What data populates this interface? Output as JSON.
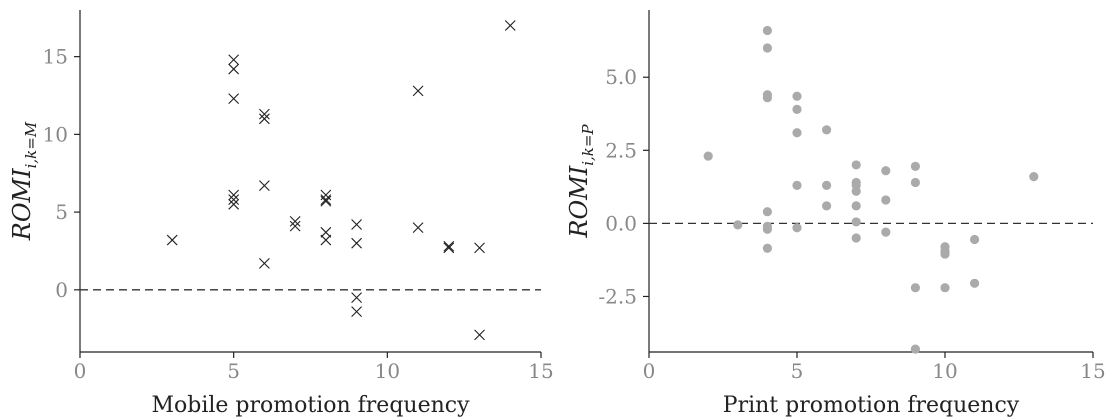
{
  "chart_data": [
    {
      "type": "scatter",
      "marker": "x",
      "marker_color": "#222222",
      "xlabel": "Mobile promotion frequency",
      "ylabel": {
        "main": "ROMI",
        "sub": "i,k=M"
      },
      "xlim": [
        0,
        15
      ],
      "ylim": [
        -4,
        18
      ],
      "xticks": [
        0,
        5,
        10,
        15
      ],
      "xtick_labels": [
        "0",
        "5",
        "10",
        "15"
      ],
      "yticks": [
        0,
        5,
        10,
        15
      ],
      "ytick_labels": [
        "0",
        "5",
        "10",
        "15"
      ],
      "reference_line": {
        "y": 0,
        "style": "dashed"
      },
      "grid": false,
      "points": [
        [
          3,
          3.2
        ],
        [
          5,
          14.8
        ],
        [
          5,
          14.2
        ],
        [
          5,
          12.3
        ],
        [
          5,
          6.1
        ],
        [
          5,
          5.8
        ],
        [
          5,
          5.5
        ],
        [
          6,
          11.3
        ],
        [
          6,
          11.0
        ],
        [
          6,
          6.7
        ],
        [
          6,
          1.7
        ],
        [
          7,
          4.4
        ],
        [
          7,
          4.1
        ],
        [
          8,
          6.1
        ],
        [
          8,
          5.8
        ],
        [
          8,
          5.7
        ],
        [
          8,
          3.7
        ],
        [
          8,
          3.2
        ],
        [
          9,
          4.2
        ],
        [
          9,
          3.0
        ],
        [
          9,
          -0.5
        ],
        [
          9,
          -1.4
        ],
        [
          11,
          12.8
        ],
        [
          11,
          4.0
        ],
        [
          12,
          2.8
        ],
        [
          12,
          2.7
        ],
        [
          13,
          2.7
        ],
        [
          13,
          -2.9
        ],
        [
          14,
          17.0
        ]
      ]
    },
    {
      "type": "scatter",
      "marker": "dot",
      "marker_color": "#aaaaaa",
      "xlabel": "Print promotion frequency",
      "ylabel": {
        "main": "ROMI",
        "sub": "i,k=P"
      },
      "xlim": [
        0,
        15
      ],
      "ylim": [
        -4.4,
        7.3
      ],
      "xticks": [
        0,
        5,
        10,
        15
      ],
      "xtick_labels": [
        "0",
        "5",
        "10",
        "15"
      ],
      "yticks": [
        -2.5,
        0,
        2.5,
        5
      ],
      "ytick_labels": [
        "-2.5",
        "0.0",
        "2.5",
        "5.0"
      ],
      "reference_line": {
        "y": 0,
        "style": "dashed"
      },
      "grid": false,
      "points": [
        [
          2,
          2.3
        ],
        [
          3,
          -0.05
        ],
        [
          4,
          6.6
        ],
        [
          4,
          6.0
        ],
        [
          4,
          4.4
        ],
        [
          4,
          4.3
        ],
        [
          4,
          0.4
        ],
        [
          4,
          -0.1
        ],
        [
          4,
          -0.2
        ],
        [
          4,
          -0.85
        ],
        [
          5,
          4.35
        ],
        [
          5,
          3.9
        ],
        [
          5,
          3.1
        ],
        [
          5,
          1.3
        ],
        [
          5,
          -0.15
        ],
        [
          6,
          3.2
        ],
        [
          6,
          1.3
        ],
        [
          6,
          0.6
        ],
        [
          7,
          2.0
        ],
        [
          7,
          1.4
        ],
        [
          7,
          1.3
        ],
        [
          7,
          1.1
        ],
        [
          7,
          0.6
        ],
        [
          7,
          0.05
        ],
        [
          7,
          -0.5
        ],
        [
          8,
          1.8
        ],
        [
          8,
          0.8
        ],
        [
          8,
          -0.3
        ],
        [
          9,
          1.95
        ],
        [
          9,
          1.4
        ],
        [
          9,
          -2.2
        ],
        [
          9,
          -4.3
        ],
        [
          10,
          -0.8
        ],
        [
          10,
          -0.95
        ],
        [
          10,
          -1.05
        ],
        [
          10,
          -2.2
        ],
        [
          11,
          -0.55
        ],
        [
          11,
          -2.05
        ],
        [
          13,
          1.6
        ]
      ]
    }
  ]
}
